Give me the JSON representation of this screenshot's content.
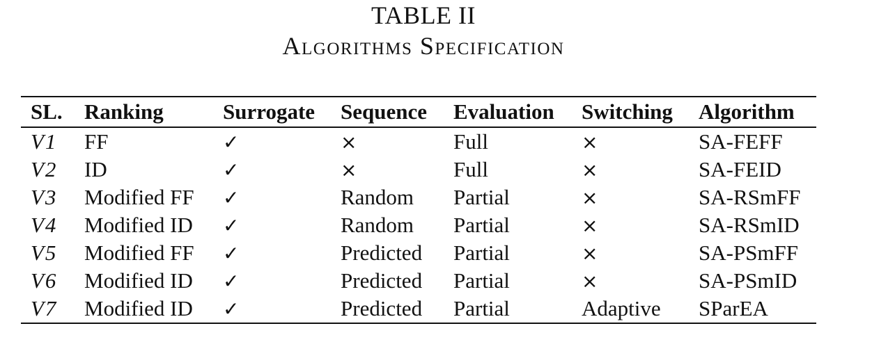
{
  "caption": {
    "number": "TABLE II",
    "title": "Algorithms Specification"
  },
  "table": {
    "headers": [
      "SL.",
      "Ranking",
      "Surrogate",
      "Sequence",
      "Evaluation",
      "Switching",
      "Algorithm"
    ],
    "rows": [
      {
        "sl": "V1",
        "ranking": "FF",
        "surrogate": "✓",
        "sequence": "×",
        "evaluation": "Full",
        "switching": "×",
        "algorithm": "SA-FEFF"
      },
      {
        "sl": "V2",
        "ranking": "ID",
        "surrogate": "✓",
        "sequence": "×",
        "evaluation": "Full",
        "switching": "×",
        "algorithm": "SA-FEID"
      },
      {
        "sl": "V3",
        "ranking": "Modified FF",
        "surrogate": "✓",
        "sequence": "Random",
        "evaluation": "Partial",
        "switching": "×",
        "algorithm": "SA-RSmFF"
      },
      {
        "sl": "V4",
        "ranking": "Modified ID",
        "surrogate": "✓",
        "sequence": "Random",
        "evaluation": "Partial",
        "switching": "×",
        "algorithm": "SA-RSmID"
      },
      {
        "sl": "V5",
        "ranking": "Modified FF",
        "surrogate": "✓",
        "sequence": "Predicted",
        "evaluation": "Partial",
        "switching": "×",
        "algorithm": "SA-PSmFF"
      },
      {
        "sl": "V6",
        "ranking": "Modified ID",
        "surrogate": "✓",
        "sequence": "Predicted",
        "evaluation": "Partial",
        "switching": "×",
        "algorithm": "SA-PSmID"
      },
      {
        "sl": "V7",
        "ranking": "Modified ID",
        "surrogate": "✓",
        "sequence": "Predicted",
        "evaluation": "Partial",
        "switching": "Adaptive",
        "algorithm": "SParEA"
      }
    ]
  }
}
